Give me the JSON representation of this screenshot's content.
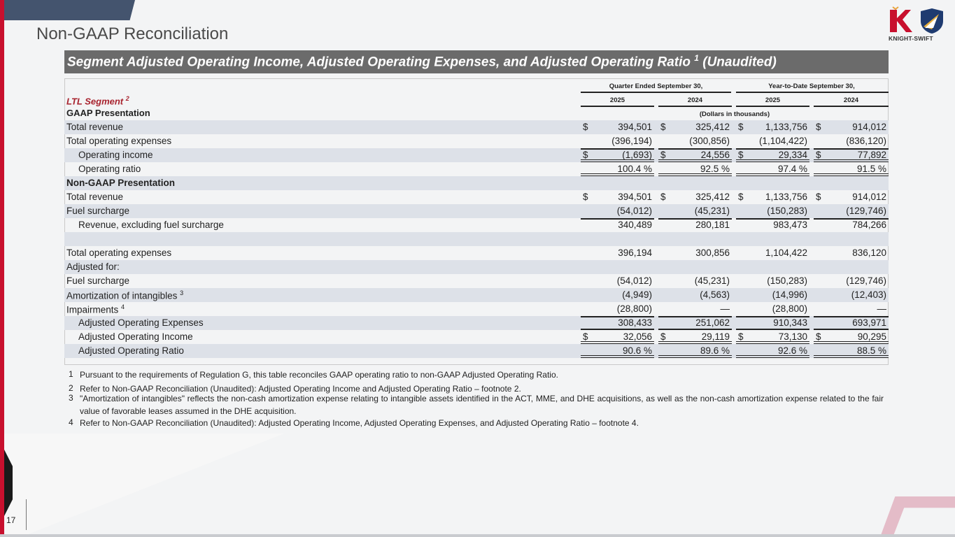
{
  "page": {
    "title": "Non-GAAP Reconciliation",
    "number": "17",
    "logo_text": "KNIGHT-SWIFT"
  },
  "banner": {
    "text": "Segment Adjusted Operating Income, Adjusted Operating Expenses, and Adjusted Operating Ratio ",
    "sup": "1",
    "suffix": " (Unaudited)"
  },
  "table": {
    "segment_label": "LTL Segment ",
    "segment_sup": "2",
    "group_headers": [
      "Quarter Ended September 30,",
      "Year-to-Date September 30,"
    ],
    "year_headers": [
      "2025",
      "2024",
      "2025",
      "2024"
    ],
    "units": "(Dollars in thousands)",
    "gaap_heading": "GAAP Presentation",
    "rows": [
      {
        "label": "Total revenue",
        "shade": true,
        "dollar": true,
        "values": [
          "394,501",
          "325,412",
          "1,133,756",
          "914,012"
        ]
      },
      {
        "label": "Total operating expenses",
        "values": [
          "(396,194)",
          "(300,856)",
          "(1,104,422)",
          "(836,120)"
        ]
      },
      {
        "label": "Operating income",
        "indent": true,
        "shade": true,
        "dollar": true,
        "top": true,
        "bottom": "double",
        "values": [
          "(1,693)",
          "24,556",
          "29,334",
          "77,892"
        ]
      },
      {
        "label": "Operating ratio",
        "indent": true,
        "bottom": "double",
        "values": [
          "100.4 %",
          "92.5 %",
          "97.4 %",
          "91.5 %"
        ]
      },
      {
        "label": "Non-GAAP Presentation",
        "bold": true,
        "shade": true,
        "values": [
          "",
          "",
          "",
          ""
        ]
      },
      {
        "label": "Total revenue",
        "dollar": true,
        "values": [
          "394,501",
          "325,412",
          "1,133,756",
          "914,012"
        ]
      },
      {
        "label": "Fuel surcharge",
        "shade": true,
        "values": [
          "(54,012)",
          "(45,231)",
          "(150,283)",
          "(129,746)"
        ]
      },
      {
        "label": "Revenue, excluding fuel surcharge",
        "indent": true,
        "top": true,
        "values": [
          "340,489",
          "280,181",
          "983,473",
          "784,266"
        ]
      },
      {
        "label": "",
        "shade": true,
        "values": [
          "",
          "",
          "",
          ""
        ]
      },
      {
        "label": "Total operating expenses",
        "values": [
          "396,194",
          "300,856",
          "1,104,422",
          "836,120"
        ]
      },
      {
        "label": "Adjusted for:",
        "shade": true,
        "values": [
          "",
          "",
          "",
          ""
        ]
      },
      {
        "label": "Fuel surcharge",
        "values": [
          "(54,012)",
          "(45,231)",
          "(150,283)",
          "(129,746)"
        ]
      },
      {
        "label": "Amortization of intangibles ",
        "sup": "3",
        "shade": true,
        "values": [
          "(4,949)",
          "(4,563)",
          "(14,996)",
          "(12,403)"
        ]
      },
      {
        "label": "Impairments ",
        "sup": "4",
        "values": [
          "(28,800)",
          "—",
          "(28,800)",
          "—"
        ]
      },
      {
        "label": "Adjusted Operating Expenses",
        "indent": true,
        "shade": true,
        "top": true,
        "bottom": "single",
        "values": [
          "308,433",
          "251,062",
          "910,343",
          "693,971"
        ]
      },
      {
        "label": "Adjusted Operating Income",
        "indent": true,
        "dollar": true,
        "bottom": "double",
        "values": [
          "32,056",
          "29,119",
          "73,130",
          "90,295"
        ]
      },
      {
        "label": "Adjusted Operating Ratio",
        "indent": true,
        "shade": true,
        "bottom": "double",
        "values": [
          "90.6 %",
          "89.6 %",
          "92.6 %",
          "88.5 %"
        ]
      }
    ]
  },
  "footnotes": [
    {
      "n": "1",
      "text": "Pursuant to the requirements of Regulation G, this table reconciles GAAP operating ratio to non-GAAP Adjusted Operating Ratio."
    },
    {
      "n": "2",
      "text": "Refer to Non-GAAP Reconciliation (Unaudited): Adjusted Operating Income and Adjusted Operating Ratio – footnote 2."
    },
    {
      "n": "3",
      "text": "\"Amortization of intangibles\" reflects the non-cash amortization expense relating to intangible assets identified in the ACT,  MME, and DHE acquisitions, as well as the non-cash amortization expense related to the fair value of favorable leases assumed in the DHE acquisition."
    },
    {
      "n": "4",
      "text": "Refer to Non-GAAP Reconciliation (Unaudited): Adjusted Operating Income, Adjusted Operating Expenses, and Adjusted Operating Ratio – footnote 4."
    }
  ]
}
